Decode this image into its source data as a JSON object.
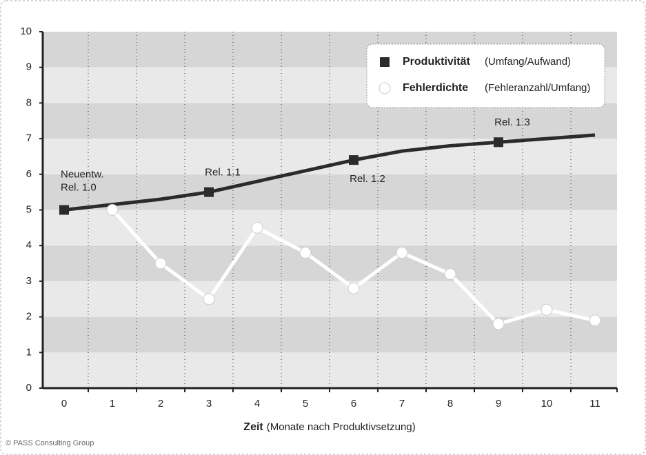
{
  "chart_data": {
    "type": "line",
    "categories": [
      0,
      1,
      2,
      3,
      4,
      5,
      6,
      7,
      8,
      9,
      10,
      11
    ],
    "series": [
      {
        "name": "Produktivität",
        "unit": "(Umfang/Aufwand)",
        "color": "#2b2b2b",
        "marker": "square",
        "values": [
          5.0,
          5.15,
          5.3,
          5.5,
          5.8,
          6.1,
          6.4,
          6.65,
          6.8,
          6.9,
          7.0,
          7.1
        ]
      },
      {
        "name": "Fehlerdichte",
        "unit": "(Fehleranzahl/Umfang)",
        "color": "#ffffff",
        "marker": "circle",
        "values": [
          null,
          5.0,
          3.5,
          2.5,
          4.5,
          3.8,
          2.8,
          3.8,
          3.2,
          1.8,
          2.2,
          1.9
        ]
      }
    ],
    "annotations": [
      {
        "x": 0,
        "lines": [
          "Neuentw.",
          "Rel. 1.0"
        ]
      },
      {
        "x": 3,
        "lines": [
          "Rel. 1.1"
        ]
      },
      {
        "x": 6,
        "lines": [
          "Rel. 1.2"
        ]
      },
      {
        "x": 9,
        "lines": [
          "Rel. 1.3"
        ]
      }
    ],
    "xlabel": {
      "main": "Zeit",
      "detail": "(Monate nach Produktivsetzung)"
    },
    "ylim": [
      0,
      10
    ],
    "yticks": [
      0,
      1,
      2,
      3,
      4,
      5,
      6,
      7,
      8,
      9,
      10
    ],
    "footer": "© PASS Consulting Group"
  }
}
